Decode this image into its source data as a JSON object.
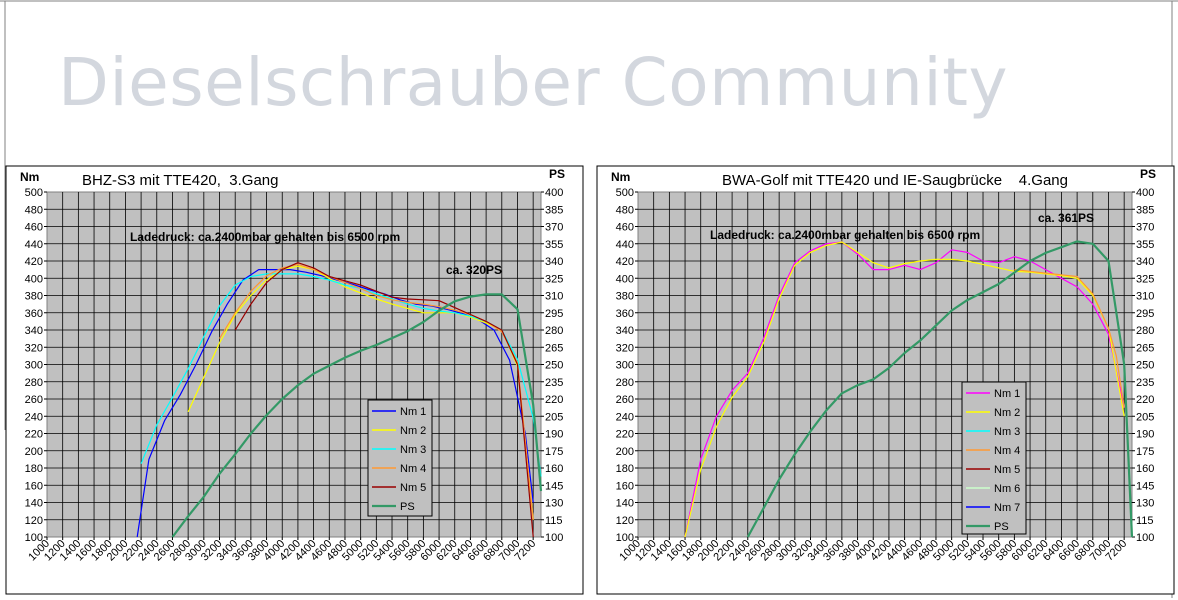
{
  "watermark": "Dieselschrauber Community",
  "chart_data": [
    {
      "type": "line",
      "title": "BHZ-S3 mit TTE420,  3.Gang",
      "annotation": "Ladedruck: ca.2400mbar gehalten bis 6500 rpm",
      "peak_label": "ca. 320PS",
      "ylabel_left": "Nm",
      "ylabel_right": "PS",
      "xlim": [
        1000,
        7300
      ],
      "ylim_left": [
        100,
        500
      ],
      "ylim_right": [
        100,
        400
      ],
      "x_ticks": [
        1000,
        1200,
        1400,
        1600,
        1800,
        2000,
        2200,
        2400,
        2600,
        2800,
        3000,
        3200,
        3400,
        3600,
        3800,
        4000,
        4200,
        4400,
        4600,
        4800,
        5000,
        5200,
        5400,
        5600,
        5800,
        6000,
        6200,
        6400,
        6600,
        6800,
        7000,
        7200
      ],
      "y_ticks_left": [
        100,
        120,
        140,
        160,
        180,
        200,
        220,
        240,
        260,
        280,
        300,
        320,
        340,
        360,
        380,
        400,
        420,
        440,
        460,
        480,
        500
      ],
      "y_ticks_right": [
        100,
        115,
        130,
        145,
        160,
        175,
        190,
        205,
        220,
        235,
        250,
        265,
        280,
        295,
        310,
        325,
        340,
        355,
        370,
        385,
        400
      ],
      "grid": true,
      "legend_position": "lower-right",
      "series": [
        {
          "name": "Nm 1",
          "color": "#0000ff",
          "axis": "left",
          "x": [
            2150,
            2300,
            2500,
            2700,
            2900,
            3100,
            3300,
            3500,
            3700,
            3900,
            4100,
            4300,
            4500,
            4700,
            4900,
            5100,
            5300,
            5500,
            5700,
            5900,
            6100,
            6300,
            6500,
            6700,
            6900,
            7100,
            7200
          ],
          "y": [
            100,
            190,
            235,
            265,
            300,
            338,
            370,
            398,
            410,
            410,
            410,
            407,
            403,
            398,
            393,
            387,
            382,
            375,
            370,
            368,
            364,
            359,
            352,
            340,
            305,
            220,
            140
          ]
        },
        {
          "name": "Nm 2",
          "color": "#ffff00",
          "axis": "left",
          "x": [
            2800,
            3000,
            3200,
            3400,
            3600,
            3800,
            4000,
            4200,
            4400,
            4600,
            4800,
            5000,
            5200,
            5400,
            5600,
            5800,
            6000,
            6200,
            6400,
            6600,
            6800,
            7000,
            7200
          ],
          "y": [
            245,
            285,
            325,
            358,
            380,
            398,
            410,
            414,
            410,
            400,
            390,
            383,
            376,
            370,
            365,
            360,
            360,
            360,
            355,
            348,
            340,
            298,
            120
          ]
        },
        {
          "name": "Nm 3",
          "color": "#00ffff",
          "axis": "left",
          "x": [
            2200,
            2400,
            2600,
            2800,
            3000,
            3200,
            3400,
            3600,
            3800,
            4000,
            4200,
            4400,
            4600,
            4800,
            5000,
            5200,
            5400,
            5600,
            5800,
            6000,
            6200,
            6400,
            6600,
            6800,
            7000,
            7200,
            7300
          ],
          "y": [
            185,
            230,
            262,
            295,
            332,
            368,
            392,
            402,
            405,
            405,
            405,
            402,
            398,
            392,
            388,
            382,
            376,
            370,
            365,
            362,
            360,
            356,
            350,
            340,
            306,
            238,
            170
          ]
        },
        {
          "name": "Nm 4",
          "color": "#ff9933",
          "axis": "left",
          "x": [
            3200,
            3400,
            3600,
            3800,
            4000,
            4200,
            4400,
            4600,
            4800,
            5000,
            5200,
            5400,
            5600,
            5800,
            6000,
            6200,
            6400,
            6600,
            6800,
            7000,
            7200
          ],
          "y": [
            330,
            360,
            385,
            403,
            412,
            416,
            410,
            402,
            395,
            388,
            380,
            375,
            372,
            370,
            367,
            363,
            358,
            350,
            338,
            302,
            120
          ]
        },
        {
          "name": "Nm 5",
          "color": "#990000",
          "axis": "left",
          "x": [
            3400,
            3600,
            3800,
            4000,
            4200,
            4400,
            4600,
            4800,
            5000,
            5200,
            5400,
            5600,
            5800,
            6000,
            6200,
            6400,
            6600,
            6800,
            7000,
            7200
          ],
          "y": [
            340,
            370,
            395,
            410,
            418,
            412,
            402,
            397,
            392,
            385,
            378,
            376,
            375,
            374,
            366,
            358,
            350,
            340,
            300,
            100
          ]
        },
        {
          "name": "PS",
          "color": "#339966",
          "axis": "right",
          "x": [
            2600,
            2800,
            3000,
            3200,
            3400,
            3600,
            3800,
            4000,
            4200,
            4400,
            4600,
            4800,
            5000,
            5200,
            5400,
            5600,
            5800,
            6000,
            6200,
            6400,
            6600,
            6800,
            7000,
            7200,
            7300
          ],
          "y": [
            100,
            118,
            135,
            155,
            172,
            190,
            206,
            220,
            232,
            242,
            249,
            256,
            262,
            267,
            273,
            279,
            287,
            297,
            305,
            309,
            311,
            311,
            298,
            215,
            140
          ]
        }
      ]
    },
    {
      "type": "line",
      "title": "BWA-Golf mit TTE420 und IE-Saugbrücke    4.Gang",
      "annotation": "Ladedruck: ca.2400mbar gehalten bis 6500 rpm",
      "peak_label": "ca. 361PS",
      "ylabel_left": "Nm",
      "ylabel_right": "PS",
      "xlim": [
        1000,
        7300
      ],
      "ylim_left": [
        100,
        500
      ],
      "ylim_right": [
        100,
        400
      ],
      "x_ticks": [
        1000,
        1200,
        1400,
        1600,
        1800,
        2000,
        2200,
        2400,
        2600,
        2800,
        3000,
        3200,
        3400,
        3600,
        3800,
        4000,
        4200,
        4400,
        4600,
        4800,
        5000,
        5200,
        5400,
        5600,
        5800,
        6000,
        6200,
        6400,
        6600,
        6800,
        7000,
        7200
      ],
      "y_ticks_left": [
        100,
        120,
        140,
        160,
        180,
        200,
        220,
        240,
        260,
        280,
        300,
        320,
        340,
        360,
        380,
        400,
        420,
        440,
        460,
        480,
        500
      ],
      "y_ticks_right": [
        100,
        115,
        130,
        145,
        160,
        175,
        190,
        205,
        220,
        235,
        250,
        265,
        280,
        295,
        310,
        325,
        340,
        355,
        370,
        385,
        400
      ],
      "grid": true,
      "legend_position": "lower-center",
      "series": [
        {
          "name": "Nm 1",
          "color": "#ff00ff",
          "axis": "left",
          "x": [
            1600,
            1800,
            2000,
            2200,
            2400,
            2600,
            2800,
            3000,
            3200,
            3400,
            3600,
            3800,
            4000,
            4200,
            4400,
            4600,
            4800,
            5000,
            5200,
            5400,
            5600,
            5800,
            6000,
            6200,
            6400,
            6600,
            6800,
            7000,
            7200
          ],
          "y": [
            100,
            190,
            240,
            270,
            290,
            330,
            380,
            418,
            432,
            440,
            442,
            428,
            410,
            410,
            415,
            410,
            418,
            433,
            430,
            420,
            418,
            425,
            420,
            410,
            400,
            390,
            370,
            335,
            250
          ]
        },
        {
          "name": "Nm 2",
          "color": "#ffff00",
          "axis": "left",
          "x": [
            1600,
            1800,
            2000,
            2200,
            2400,
            2600,
            2800,
            3000,
            3200,
            3400,
            3600,
            3800,
            4000,
            4200,
            4400,
            4600,
            4800,
            5000,
            5200,
            5400,
            5600,
            5800,
            6000,
            6200,
            6400,
            6600,
            6800,
            7000,
            7200
          ],
          "y": [
            100,
            178,
            228,
            262,
            286,
            325,
            376,
            415,
            430,
            438,
            442,
            430,
            418,
            412,
            417,
            420,
            422,
            422,
            420,
            416,
            412,
            408,
            407,
            405,
            403,
            400,
            380,
            342,
            240
          ]
        },
        {
          "name": "Nm 3",
          "color": "#00ffff",
          "axis": "left",
          "x": [],
          "y": []
        },
        {
          "name": "Nm 4",
          "color": "#ff9933",
          "axis": "left",
          "x": [
            5800,
            6000,
            6200,
            6400,
            6600,
            6800,
            7000,
            7100,
            7200
          ],
          "y": [
            410,
            408,
            406,
            404,
            402,
            382,
            342,
            310,
            250
          ]
        },
        {
          "name": "Nm 5",
          "color": "#990000",
          "axis": "left",
          "x": [],
          "y": []
        },
        {
          "name": "Nm 6",
          "color": "#ccffcc",
          "axis": "left",
          "x": [],
          "y": []
        },
        {
          "name": "Nm 7",
          "color": "#0000ff",
          "axis": "left",
          "x": [],
          "y": []
        },
        {
          "name": "PS",
          "color": "#339966",
          "axis": "right",
          "x": [
            2400,
            2600,
            2800,
            3000,
            3200,
            3400,
            3600,
            3800,
            4000,
            4200,
            4400,
            4600,
            4800,
            5000,
            5200,
            5400,
            5600,
            5800,
            6000,
            6200,
            6400,
            6600,
            6800,
            7000,
            7200,
            7300
          ],
          "y": [
            100,
            125,
            150,
            172,
            192,
            210,
            225,
            232,
            237,
            247,
            260,
            271,
            284,
            297,
            306,
            313,
            320,
            330,
            340,
            347,
            352,
            357,
            355,
            340,
            250,
            100
          ]
        }
      ]
    }
  ]
}
